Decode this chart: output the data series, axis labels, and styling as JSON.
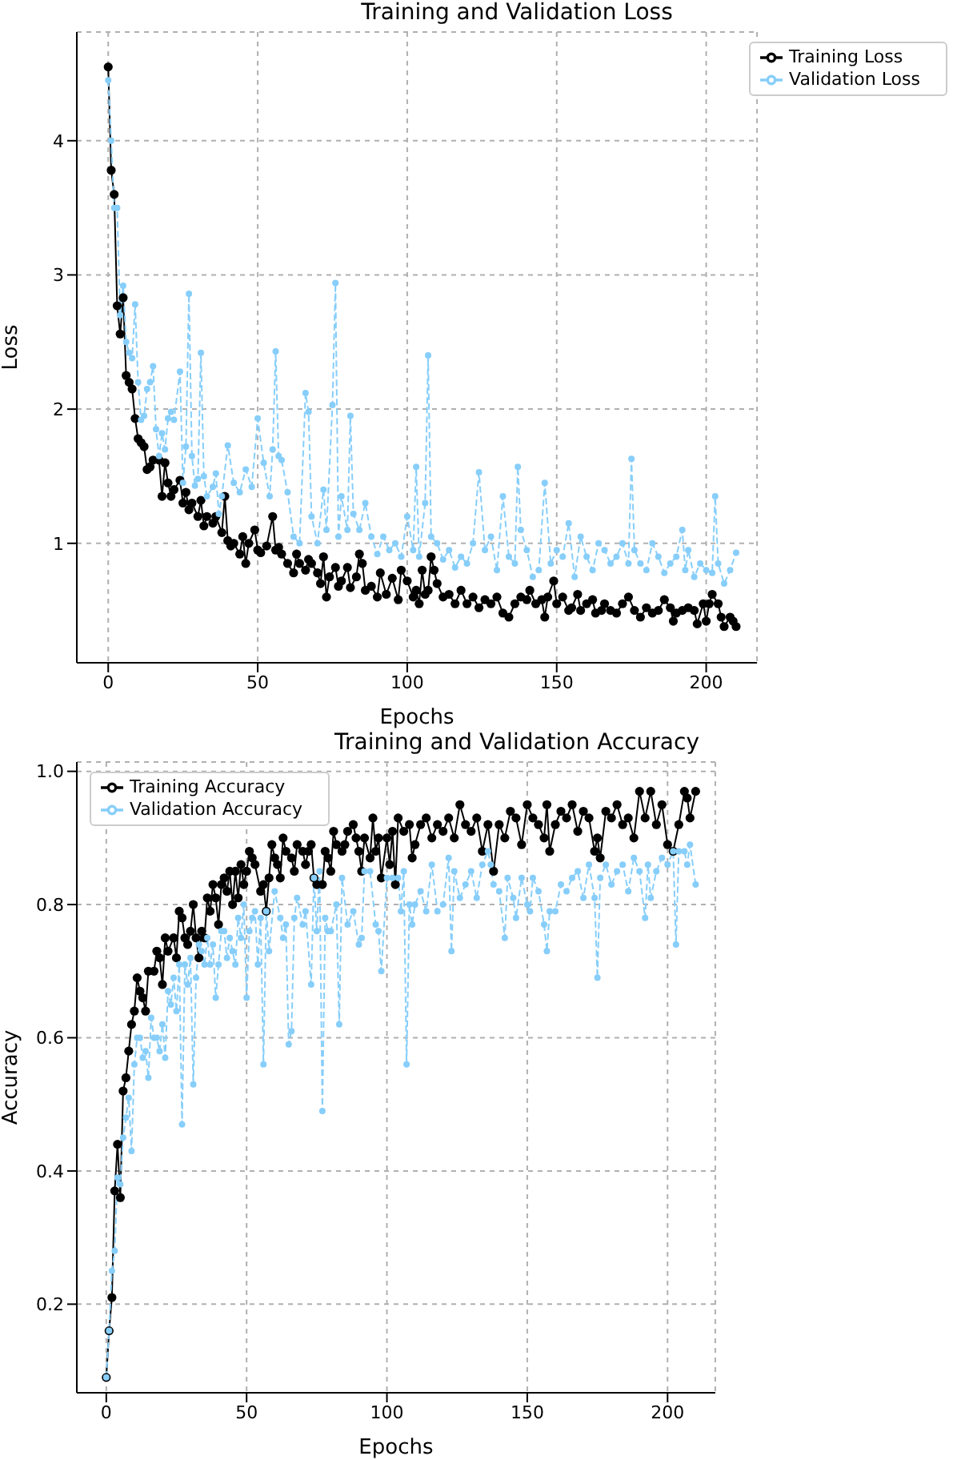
{
  "chart_data": [
    {
      "type": "line",
      "title": "Training and Validation Loss",
      "xlabel": "Epochs",
      "ylabel": "Loss",
      "xlim": [
        -10.5,
        217
      ],
      "xticks": [
        0,
        50,
        100,
        150,
        200
      ],
      "ylim": [
        0.11,
        4.81
      ],
      "yticks": [
        1,
        2,
        3,
        4
      ],
      "grid": true,
      "legend": "top right",
      "marker": "circle",
      "series": [
        {
          "name": "Training Loss",
          "color": "#000000",
          "line_style": "solid",
          "x": [
            0,
            1,
            2,
            3,
            4,
            5,
            6,
            7,
            8,
            9,
            10,
            11,
            12,
            13,
            14,
            15,
            17,
            18,
            19,
            20,
            21,
            22,
            24,
            25,
            26,
            27,
            28,
            30,
            31,
            32,
            33,
            35,
            36,
            38,
            39,
            40,
            41,
            42,
            44,
            45,
            46,
            47,
            49,
            50,
            51,
            53,
            55,
            56,
            57,
            58,
            60,
            62,
            63,
            64,
            66,
            67,
            68,
            70,
            71,
            72,
            73,
            74,
            76,
            77,
            78,
            80,
            81,
            83,
            84,
            85,
            86,
            88,
            90,
            91,
            93,
            95,
            97,
            98,
            100,
            102,
            103,
            104,
            105,
            106,
            107,
            108,
            109,
            110,
            112,
            114,
            116,
            118,
            120,
            122,
            124,
            126,
            128,
            130,
            132,
            134,
            136,
            138,
            140,
            141,
            143,
            145,
            146,
            147,
            149,
            150,
            152,
            154,
            155,
            157,
            158,
            160,
            162,
            163,
            165,
            166,
            168,
            170,
            172,
            174,
            176,
            178,
            180,
            182,
            184,
            186,
            188,
            189,
            190,
            192,
            194,
            196,
            197,
            199,
            200,
            201,
            202,
            204,
            205,
            206,
            208,
            209,
            210
          ],
          "values": [
            4.55,
            3.78,
            3.6,
            2.77,
            2.56,
            2.83,
            2.25,
            2.2,
            2.15,
            1.93,
            1.78,
            1.75,
            1.72,
            1.55,
            1.57,
            1.62,
            1.62,
            1.35,
            1.6,
            1.45,
            1.35,
            1.4,
            1.47,
            1.3,
            1.38,
            1.25,
            1.3,
            1.2,
            1.32,
            1.13,
            1.2,
            1.15,
            1.2,
            1.08,
            1.35,
            1.02,
            0.98,
            1.0,
            0.92,
            1.05,
            0.85,
            1.0,
            1.1,
            0.95,
            0.93,
            0.98,
            1.2,
            0.95,
            0.97,
            0.92,
            0.85,
            0.78,
            0.92,
            0.85,
            0.8,
            0.88,
            0.85,
            0.78,
            0.7,
            0.9,
            0.6,
            0.75,
            0.82,
            0.68,
            0.72,
            0.82,
            0.67,
            0.75,
            0.92,
            0.85,
            0.65,
            0.68,
            0.6,
            0.78,
            0.62,
            0.74,
            0.58,
            0.8,
            0.72,
            0.6,
            0.65,
            0.55,
            0.8,
            0.62,
            0.65,
            0.9,
            0.8,
            0.7,
            0.6,
            0.62,
            0.55,
            0.65,
            0.55,
            0.6,
            0.52,
            0.58,
            0.55,
            0.6,
            0.48,
            0.45,
            0.55,
            0.6,
            0.58,
            0.65,
            0.55,
            0.58,
            0.45,
            0.6,
            0.72,
            0.55,
            0.6,
            0.5,
            0.52,
            0.62,
            0.5,
            0.55,
            0.58,
            0.48,
            0.5,
            0.55,
            0.5,
            0.48,
            0.55,
            0.6,
            0.5,
            0.45,
            0.52,
            0.48,
            0.5,
            0.58,
            0.52,
            0.42,
            0.48,
            0.5,
            0.52,
            0.5,
            0.4,
            0.55,
            0.42,
            0.55,
            0.62,
            0.55,
            0.45,
            0.38,
            0.45,
            0.42,
            0.38
          ]
        },
        {
          "name": "Validation Loss",
          "color": "#87cefa",
          "line_style": "dashed",
          "x": [
            0,
            1,
            2,
            3,
            4,
            5,
            6,
            7,
            8,
            9,
            10,
            11,
            12,
            13,
            14,
            15,
            16,
            17,
            18,
            19,
            20,
            21,
            22,
            24,
            25,
            26,
            27,
            28,
            29,
            30,
            31,
            32,
            33,
            35,
            36,
            37,
            38,
            40,
            42,
            44,
            46,
            48,
            50,
            52,
            54,
            55,
            56,
            57,
            58,
            60,
            62,
            64,
            66,
            67,
            68,
            70,
            72,
            73,
            75,
            76,
            77,
            78,
            80,
            81,
            82,
            84,
            86,
            88,
            90,
            92,
            94,
            96,
            98,
            100,
            102,
            103,
            104,
            106,
            107,
            108,
            110,
            112,
            114,
            116,
            118,
            120,
            122,
            124,
            126,
            128,
            130,
            132,
            134,
            136,
            137,
            138,
            140,
            142,
            144,
            146,
            148,
            150,
            152,
            154,
            156,
            158,
            160,
            162,
            164,
            166,
            168,
            170,
            172,
            174,
            175,
            176,
            178,
            180,
            182,
            184,
            186,
            188,
            190,
            192,
            193,
            194,
            196,
            198,
            200,
            202,
            203,
            204,
            206,
            208,
            210
          ],
          "values": [
            4.45,
            4.0,
            3.5,
            3.5,
            2.7,
            2.92,
            2.5,
            2.42,
            2.38,
            2.78,
            2.2,
            1.92,
            1.95,
            2.15,
            2.2,
            2.32,
            1.85,
            1.65,
            1.82,
            1.7,
            1.93,
            1.98,
            1.92,
            2.28,
            1.45,
            1.72,
            2.86,
            1.65,
            1.43,
            1.48,
            2.42,
            1.5,
            1.35,
            1.42,
            1.52,
            1.22,
            1.35,
            1.73,
            1.45,
            1.38,
            1.55,
            1.42,
            1.93,
            1.6,
            1.35,
            1.7,
            2.43,
            1.65,
            1.62,
            1.38,
            1.05,
            1.0,
            2.12,
            1.98,
            1.2,
            1.0,
            1.4,
            1.1,
            2.03,
            2.94,
            1.05,
            1.35,
            1.1,
            1.95,
            1.22,
            1.1,
            1.3,
            1.05,
            0.92,
            1.05,
            0.95,
            1.0,
            0.9,
            1.2,
            0.95,
            1.57,
            0.9,
            1.3,
            2.4,
            1.05,
            1.0,
            0.88,
            0.95,
            0.82,
            0.9,
            0.85,
            1.0,
            1.53,
            0.95,
            1.05,
            0.8,
            1.35,
            0.9,
            0.85,
            1.57,
            1.1,
            0.95,
            0.75,
            0.8,
            1.45,
            0.85,
            0.95,
            0.9,
            1.15,
            0.75,
            1.05,
            0.9,
            0.8,
            1.0,
            0.95,
            0.85,
            0.9,
            1.0,
            0.85,
            1.63,
            0.95,
            0.85,
            0.8,
            1.0,
            0.9,
            0.78,
            0.85,
            0.9,
            1.1,
            0.8,
            0.95,
            0.75,
            0.85,
            0.8,
            0.78,
            1.35,
            0.85,
            0.7,
            0.8,
            0.93
          ]
        }
      ]
    },
    {
      "type": "line",
      "title": "Training and Validation Accuracy",
      "xlabel": "Epochs",
      "ylabel": "Accuracy",
      "xlim": [
        -10.5,
        217
      ],
      "xticks": [
        0,
        50,
        100,
        150,
        200
      ],
      "ylim": [
        0.067,
        1.014
      ],
      "yticks": [
        {
          "value": 0.2,
          "label": "0.2"
        },
        {
          "value": 0.4,
          "label": "0.4"
        },
        {
          "value": 0.6,
          "label": "0.6"
        },
        {
          "value": 0.8,
          "label": "0.8"
        },
        {
          "value": 1.0,
          "label": "1.0"
        }
      ],
      "grid": true,
      "legend": "top left",
      "marker": "circle",
      "series": [
        {
          "name": "Training Accuracy",
          "color": "#000000",
          "line_style": "solid",
          "x": [
            0,
            1,
            2,
            3,
            4,
            5,
            6,
            7,
            8,
            9,
            10,
            11,
            12,
            13,
            14,
            15,
            17,
            18,
            19,
            20,
            21,
            22,
            24,
            25,
            26,
            27,
            28,
            29,
            30,
            31,
            32,
            33,
            34,
            35,
            36,
            37,
            38,
            39,
            40,
            41,
            42,
            43,
            44,
            45,
            46,
            47,
            48,
            49,
            50,
            51,
            52,
            53,
            55,
            56,
            57,
            58,
            59,
            60,
            61,
            62,
            63,
            64,
            66,
            67,
            68,
            70,
            71,
            72,
            73,
            74,
            75,
            77,
            78,
            79,
            80,
            81,
            82,
            84,
            85,
            86,
            88,
            89,
            90,
            91,
            92,
            94,
            95,
            96,
            97,
            98,
            100,
            101,
            102,
            103,
            104,
            106,
            108,
            109,
            110,
            112,
            114,
            116,
            118,
            120,
            122,
            124,
            126,
            128,
            130,
            132,
            134,
            136,
            138,
            140,
            142,
            144,
            146,
            148,
            150,
            152,
            154,
            156,
            157,
            158,
            160,
            162,
            164,
            166,
            168,
            170,
            172,
            174,
            175,
            176,
            178,
            180,
            182,
            184,
            186,
            188,
            190,
            192,
            194,
            196,
            198,
            200,
            202,
            204,
            206,
            207,
            208,
            210
          ],
          "values": [
            0.09,
            0.16,
            0.21,
            0.37,
            0.44,
            0.36,
            0.52,
            0.54,
            0.58,
            0.62,
            0.64,
            0.69,
            0.67,
            0.66,
            0.64,
            0.7,
            0.7,
            0.73,
            0.72,
            0.68,
            0.75,
            0.73,
            0.75,
            0.72,
            0.79,
            0.78,
            0.75,
            0.74,
            0.76,
            0.8,
            0.75,
            0.72,
            0.76,
            0.75,
            0.81,
            0.79,
            0.83,
            0.81,
            0.77,
            0.83,
            0.84,
            0.82,
            0.85,
            0.8,
            0.85,
            0.81,
            0.86,
            0.83,
            0.85,
            0.88,
            0.87,
            0.86,
            0.82,
            0.83,
            0.79,
            0.84,
            0.89,
            0.87,
            0.86,
            0.84,
            0.9,
            0.88,
            0.87,
            0.85,
            0.89,
            0.88,
            0.86,
            0.88,
            0.89,
            0.84,
            0.83,
            0.83,
            0.88,
            0.87,
            0.85,
            0.91,
            0.89,
            0.88,
            0.89,
            0.91,
            0.92,
            0.9,
            0.88,
            0.85,
            0.9,
            0.87,
            0.93,
            0.88,
            0.9,
            0.84,
            0.9,
            0.86,
            0.91,
            0.83,
            0.93,
            0.91,
            0.92,
            0.87,
            0.89,
            0.92,
            0.93,
            0.9,
            0.92,
            0.91,
            0.93,
            0.9,
            0.95,
            0.92,
            0.91,
            0.93,
            0.88,
            0.92,
            0.85,
            0.92,
            0.9,
            0.94,
            0.93,
            0.89,
            0.95,
            0.93,
            0.92,
            0.9,
            0.95,
            0.88,
            0.92,
            0.94,
            0.93,
            0.95,
            0.91,
            0.94,
            0.93,
            0.88,
            0.9,
            0.87,
            0.94,
            0.93,
            0.95,
            0.92,
            0.93,
            0.9,
            0.97,
            0.93,
            0.97,
            0.92,
            0.95,
            0.89,
            0.88,
            0.92,
            0.97,
            0.96,
            0.93,
            0.97
          ]
        },
        {
          "name": "Validation Accuracy",
          "color": "#87cefa",
          "line_style": "dashed",
          "x": [
            0,
            1,
            2,
            3,
            4,
            5,
            6,
            7,
            8,
            9,
            10,
            11,
            12,
            13,
            14,
            15,
            16,
            17,
            18,
            19,
            20,
            21,
            22,
            23,
            24,
            25,
            26,
            27,
            28,
            29,
            30,
            31,
            32,
            33,
            34,
            35,
            36,
            37,
            38,
            39,
            40,
            41,
            42,
            43,
            44,
            45,
            46,
            47,
            48,
            49,
            50,
            51,
            52,
            53,
            54,
            55,
            56,
            57,
            58,
            60,
            62,
            63,
            64,
            65,
            66,
            67,
            68,
            70,
            71,
            73,
            74,
            75,
            76,
            77,
            78,
            79,
            80,
            82,
            83,
            84,
            86,
            88,
            90,
            91,
            92,
            94,
            96,
            97,
            98,
            100,
            102,
            104,
            105,
            106,
            107,
            108,
            109,
            110,
            112,
            114,
            116,
            118,
            120,
            122,
            123,
            124,
            126,
            128,
            130,
            132,
            134,
            136,
            137,
            138,
            140,
            142,
            143,
            145,
            146,
            148,
            150,
            151,
            152,
            154,
            156,
            157,
            158,
            160,
            162,
            164,
            166,
            168,
            170,
            172,
            174,
            175,
            176,
            178,
            180,
            182,
            184,
            186,
            188,
            190,
            192,
            193,
            194,
            196,
            198,
            200,
            202,
            203,
            204,
            206,
            207,
            208,
            210
          ],
          "values": [
            0.09,
            0.16,
            0.25,
            0.28,
            0.39,
            0.38,
            0.45,
            0.48,
            0.51,
            0.43,
            0.56,
            0.6,
            0.6,
            0.57,
            0.58,
            0.54,
            0.63,
            0.6,
            0.6,
            0.58,
            0.62,
            0.57,
            0.67,
            0.65,
            0.69,
            0.64,
            0.71,
            0.47,
            0.71,
            0.68,
            0.72,
            0.53,
            0.69,
            0.74,
            0.73,
            0.71,
            0.75,
            0.71,
            0.74,
            0.66,
            0.71,
            0.76,
            0.76,
            0.72,
            0.75,
            0.73,
            0.71,
            0.78,
            0.75,
            0.8,
            0.66,
            0.76,
            0.78,
            0.79,
            0.71,
            0.78,
            0.56,
            0.79,
            0.73,
            0.82,
            0.78,
            0.75,
            0.77,
            0.59,
            0.61,
            0.78,
            0.81,
            0.77,
            0.79,
            0.68,
            0.84,
            0.76,
            0.85,
            0.49,
            0.78,
            0.76,
            0.76,
            0.8,
            0.62,
            0.84,
            0.77,
            0.79,
            0.74,
            0.75,
            0.85,
            0.85,
            0.77,
            0.76,
            0.7,
            0.84,
            0.84,
            0.84,
            0.79,
            0.85,
            0.56,
            0.8,
            0.77,
            0.8,
            0.82,
            0.79,
            0.86,
            0.79,
            0.8,
            0.87,
            0.73,
            0.85,
            0.81,
            0.83,
            0.85,
            0.81,
            0.86,
            0.88,
            0.86,
            0.83,
            0.82,
            0.75,
            0.84,
            0.81,
            0.78,
            0.84,
            0.8,
            0.79,
            0.84,
            0.82,
            0.77,
            0.73,
            0.79,
            0.79,
            0.83,
            0.82,
            0.84,
            0.85,
            0.81,
            0.86,
            0.81,
            0.69,
            0.84,
            0.86,
            0.83,
            0.85,
            0.86,
            0.82,
            0.87,
            0.85,
            0.78,
            0.86,
            0.81,
            0.85,
            0.87,
            0.86,
            0.88,
            0.74,
            0.88,
            0.88,
            0.86,
            0.89,
            0.83
          ]
        }
      ]
    }
  ]
}
